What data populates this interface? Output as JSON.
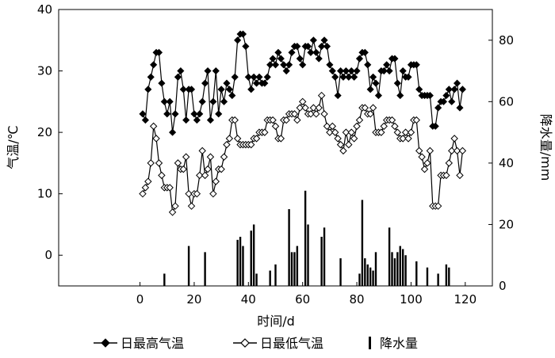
{
  "chart_data": {
    "type": "line",
    "xlabel": "时间/d",
    "ylabel_left": "气温/℃",
    "ylabel_right": "降水量/mm",
    "xlim": [
      -30,
      130
    ],
    "ylim_left": [
      -5,
      40
    ],
    "ylim_right": [
      0,
      90
    ],
    "x_ticks": [
      0,
      20,
      40,
      60,
      80,
      100,
      120
    ],
    "y_left_ticks": [
      0,
      10,
      20,
      30,
      40
    ],
    "y_right_ticks": [
      0,
      20,
      40,
      60,
      80
    ],
    "x_tick_labels": [
      "0",
      "20",
      "40",
      "60",
      "80",
      "100",
      "120"
    ],
    "y_left_tick_labels": [
      "0",
      "10",
      "20",
      "30",
      "40"
    ],
    "y_right_tick_labels": [
      "0",
      "20",
      "40",
      "60",
      "80"
    ],
    "grid": false,
    "legend_position": "bottom",
    "series": [
      {
        "name": "日最高气温",
        "axis": "left",
        "style": "line-filled-diamond",
        "color": "#000000",
        "x": [
          1,
          2,
          3,
          4,
          5,
          6,
          7,
          8,
          9,
          10,
          11,
          12,
          13,
          14,
          15,
          16,
          17,
          18,
          19,
          20,
          21,
          22,
          23,
          24,
          25,
          26,
          27,
          28,
          29,
          30,
          31,
          32,
          33,
          34,
          35,
          36,
          37,
          38,
          39,
          40,
          41,
          42,
          43,
          44,
          45,
          46,
          47,
          48,
          49,
          50,
          51,
          52,
          53,
          54,
          55,
          56,
          57,
          58,
          59,
          60,
          61,
          62,
          63,
          64,
          65,
          66,
          67,
          68,
          69,
          70,
          71,
          72,
          73,
          74,
          75,
          76,
          77,
          78,
          79,
          80,
          81,
          82,
          83,
          84,
          85,
          86,
          87,
          88,
          89,
          90,
          91,
          92,
          93,
          94,
          95,
          96,
          97,
          98,
          99,
          100,
          101,
          102,
          103,
          104,
          105,
          106,
          107,
          108,
          109,
          110,
          111,
          112,
          113,
          114,
          115,
          116,
          117,
          118,
          119
        ],
        "y": [
          23,
          22,
          27,
          29,
          31,
          33,
          33,
          28,
          25,
          23,
          25,
          20,
          23,
          29,
          30,
          27,
          22,
          27,
          27,
          23,
          22,
          23,
          25,
          28,
          30,
          22,
          25,
          30,
          23,
          27,
          25,
          28,
          27,
          26,
          29,
          35,
          36,
          36,
          34,
          29,
          27,
          29,
          28,
          29,
          28,
          28,
          29,
          31,
          32,
          31,
          33,
          32,
          31,
          30,
          31,
          33,
          34,
          34,
          32,
          31,
          34,
          34,
          33,
          35,
          33,
          32,
          34,
          35,
          34,
          31,
          30,
          29,
          26,
          30,
          29,
          30,
          29,
          30,
          29,
          30,
          32,
          33,
          33,
          31,
          27,
          29,
          28,
          26,
          30,
          30,
          31,
          30,
          32,
          32,
          28,
          26,
          30,
          29,
          29,
          31,
          31,
          31,
          27,
          26,
          26,
          26,
          26,
          21,
          21,
          24,
          25,
          25,
          26,
          27,
          25,
          27,
          28,
          24,
          27
        ]
      },
      {
        "name": "日最低气温",
        "axis": "left",
        "style": "line-open-diamond",
        "color": "#000000",
        "x": [
          1,
          2,
          3,
          4,
          5,
          6,
          7,
          8,
          9,
          10,
          11,
          12,
          13,
          14,
          15,
          16,
          17,
          18,
          19,
          20,
          21,
          22,
          23,
          24,
          25,
          26,
          27,
          28,
          29,
          30,
          31,
          32,
          33,
          34,
          35,
          36,
          37,
          38,
          39,
          40,
          41,
          42,
          43,
          44,
          45,
          46,
          47,
          48,
          49,
          50,
          51,
          52,
          53,
          54,
          55,
          56,
          57,
          58,
          59,
          60,
          61,
          62,
          63,
          64,
          65,
          66,
          67,
          68,
          69,
          70,
          71,
          72,
          73,
          74,
          75,
          76,
          77,
          78,
          79,
          80,
          81,
          82,
          83,
          84,
          85,
          86,
          87,
          88,
          89,
          90,
          91,
          92,
          93,
          94,
          95,
          96,
          97,
          98,
          99,
          100,
          101,
          102,
          103,
          104,
          105,
          106,
          107,
          108,
          109,
          110,
          111,
          112,
          113,
          114,
          115,
          116,
          117,
          118,
          119
        ],
        "y": [
          10,
          11,
          12,
          15,
          21,
          19,
          15,
          13,
          11,
          11,
          11,
          7,
          8,
          15,
          14,
          14,
          16,
          10,
          8,
          10,
          10,
          13,
          17,
          13,
          14,
          16,
          10,
          12,
          14,
          14,
          16,
          18,
          19,
          22,
          22,
          19,
          18,
          18,
          18,
          18,
          18,
          19,
          19,
          20,
          20,
          20,
          22,
          22,
          22,
          21,
          19,
          19,
          22,
          22,
          23,
          23,
          23,
          22,
          24,
          25,
          24,
          23,
          23,
          24,
          23,
          24,
          26,
          23,
          21,
          20,
          21,
          20,
          19,
          18,
          17,
          20,
          18,
          20,
          19,
          21,
          22,
          24,
          24,
          23,
          23,
          24,
          20,
          20,
          20,
          21,
          22,
          22,
          22,
          21,
          20,
          19,
          19,
          20,
          19,
          20,
          22,
          22,
          17,
          16,
          14,
          15,
          17,
          8,
          8,
          8,
          13,
          13,
          13,
          15,
          17,
          19,
          17,
          13,
          17
        ]
      },
      {
        "name": "降水量",
        "axis": "right",
        "style": "bar",
        "color": "#000000",
        "x": [
          9,
          18,
          24,
          36,
          37,
          38,
          41,
          42,
          43,
          48,
          50,
          55,
          56,
          57,
          58,
          61,
          62,
          67,
          68,
          74,
          81,
          82,
          83,
          84,
          85,
          86,
          87,
          92,
          93,
          94,
          95,
          96,
          97,
          98,
          102,
          106,
          110,
          113,
          114
        ],
        "y": [
          4,
          13,
          11,
          15,
          16,
          13,
          18,
          20,
          4,
          5,
          7,
          25,
          11,
          11,
          13,
          31,
          20,
          16,
          19,
          9,
          4,
          28,
          9,
          7,
          6,
          5,
          11,
          19,
          11,
          9,
          11,
          13,
          12,
          10,
          8,
          6,
          4,
          7,
          6
        ]
      }
    ]
  }
}
